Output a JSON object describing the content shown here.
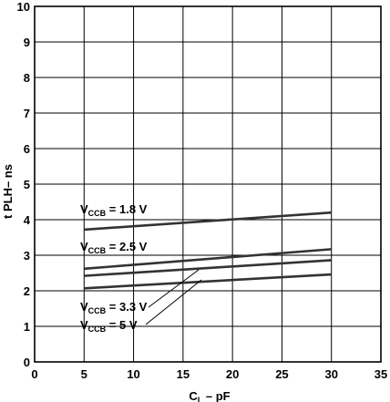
{
  "chart_data": {
    "type": "line",
    "xlabel": {
      "main": "C",
      "sub": "L",
      "suffix": " – pF"
    },
    "ylabel": "t PLH– ns",
    "xlim": [
      0,
      35
    ],
    "ylim": [
      0,
      10
    ],
    "x_ticks": [
      "0",
      "5",
      "10",
      "15",
      "20",
      "25",
      "30",
      "35"
    ],
    "y_ticks": [
      "0",
      "1",
      "2",
      "3",
      "4",
      "5",
      "6",
      "7",
      "8",
      "9",
      "10"
    ],
    "grid": true,
    "series": [
      {
        "name": {
          "main": "V",
          "sub": "CCB",
          "suffix": " = 1.8 V"
        },
        "x": [
          5,
          30
        ],
        "y": [
          3.72,
          4.2
        ]
      },
      {
        "name": {
          "main": "V",
          "sub": "CCB",
          "suffix": " = 2.5 V"
        },
        "x": [
          5,
          30
        ],
        "y": [
          2.62,
          3.17
        ]
      },
      {
        "name": {
          "main": "V",
          "sub": "CCB",
          "suffix": " = 3.3 V"
        },
        "x": [
          5,
          30
        ],
        "y": [
          2.42,
          2.86
        ]
      },
      {
        "name": {
          "main": "V",
          "sub": "CCB",
          "suffix": " = 5 V"
        },
        "x": [
          5,
          30
        ],
        "y": [
          2.07,
          2.46
        ]
      }
    ]
  }
}
